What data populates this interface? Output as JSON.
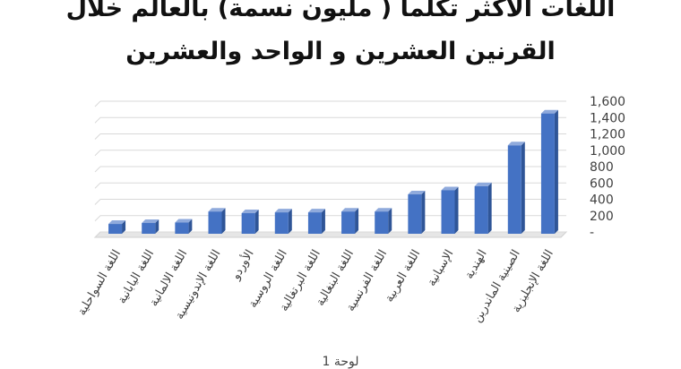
{
  "title_lines": [
    "اللغات الأكثر تكلماً ( مليون نسمة) بالعالم خلال",
    "القرنين العشرين و الواحد والعشرين"
  ],
  "footer": "لوحة 1",
  "chart_data": {
    "type": "bar",
    "title": "اللغات الأكثر تكلماً ( مليون نسمة) بالعالم خلال القرنين العشرين و الواحد والعشرين",
    "categories": [
      "اللغة السواحلية",
      "اللغة اليابانية",
      "اللغة الالمانية",
      "اللغة الإندونيسية",
      "الأوردو",
      "اللغة الروسية",
      "اللغة البرتغالية",
      "اللغة البنغالية",
      "اللغة الفرنسية",
      "اللغة العربية",
      "الإسبانية",
      "الهندية",
      "الصينية الماندرين",
      "اللغة الإنجليزية"
    ],
    "values": [
      98,
      110,
      115,
      250,
      230,
      240,
      240,
      250,
      250,
      460,
      510,
      560,
      1060,
      1450
    ],
    "ylim": [
      0,
      1600
    ],
    "yticks": [
      "-",
      "200",
      "400",
      "600",
      "800",
      "1,000",
      "1,200",
      "1,400",
      "1,600"
    ],
    "grid": true,
    "bar_color": "#4472C4"
  }
}
